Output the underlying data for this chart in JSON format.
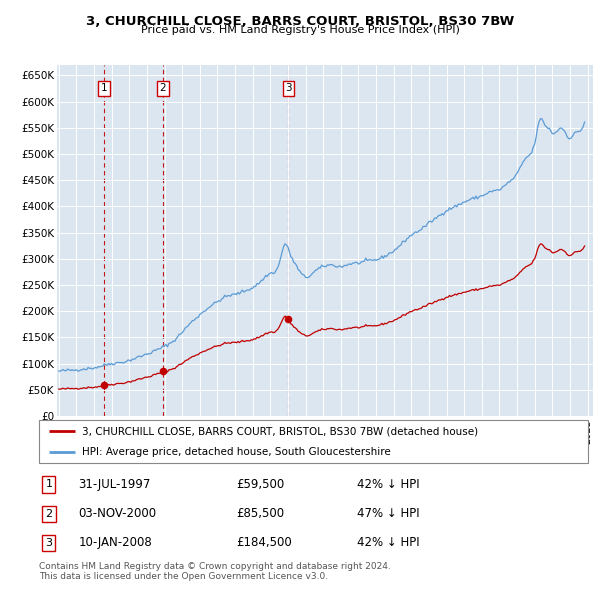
{
  "title": "3, CHURCHILL CLOSE, BARRS COURT, BRISTOL, BS30 7BW",
  "subtitle": "Price paid vs. HM Land Registry's House Price Index (HPI)",
  "legend_line1": "3, CHURCHILL CLOSE, BARRS COURT, BRISTOL, BS30 7BW (detached house)",
  "legend_line2": "HPI: Average price, detached house, South Gloucestershire",
  "footer1": "Contains HM Land Registry data © Crown copyright and database right 2024.",
  "footer2": "This data is licensed under the Open Government Licence v3.0.",
  "transactions": [
    {
      "num": 1,
      "date": "31-JUL-1997",
      "price": 59500,
      "year": 1997.583,
      "pct": "42% ↓ HPI"
    },
    {
      "num": 2,
      "date": "03-NOV-2000",
      "price": 85500,
      "year": 2000.917,
      "pct": "47% ↓ HPI"
    },
    {
      "num": 3,
      "date": "10-JAN-2008",
      "price": 184500,
      "year": 2008.033,
      "pct": "42% ↓ HPI"
    }
  ],
  "hpi_line_color": "#5b9bd5",
  "price_line_color": "#c00000",
  "dot_color": "#c00000",
  "dashed_line_color": "#c00000",
  "plot_bg_color": "#dce6f1",
  "grid_color": "#ffffff",
  "ylim": [
    0,
    670000
  ],
  "yticks": [
    0,
    50000,
    100000,
    150000,
    200000,
    250000,
    300000,
    350000,
    400000,
    450000,
    500000,
    550000,
    600000,
    650000
  ],
  "xlim_start": 1994.9,
  "xlim_end": 2025.3
}
